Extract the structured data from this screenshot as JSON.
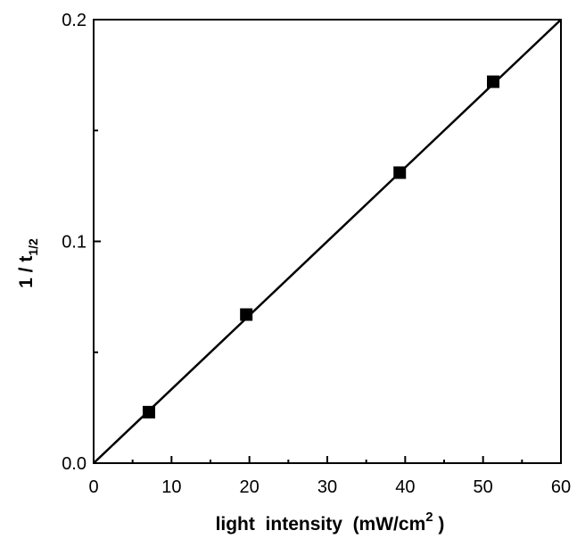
{
  "chart_data": {
    "type": "scatter",
    "xlabel": "light  intensity  (mW/cm",
    "xlabel_sup": "2",
    "xlabel_end": " )",
    "ylabel": "1 / t",
    "ylabel_sub": "1/2",
    "xlim": [
      0,
      60
    ],
    "ylim": [
      0,
      0.2
    ],
    "x_ticks": [
      "0",
      "10",
      "20",
      "30",
      "40",
      "50",
      "60"
    ],
    "y_ticks": [
      "0.0",
      "0.1",
      "0.2"
    ],
    "x_tick_values": [
      0,
      10,
      20,
      30,
      40,
      50,
      60
    ],
    "y_tick_values": [
      0,
      0.1,
      0.2
    ],
    "x_minor_step": 5,
    "y_minor_step": 0.05,
    "grid": false,
    "series": [
      {
        "x": [
          7.1,
          19.6,
          39.3,
          51.3
        ],
        "y": [
          0.023,
          0.067,
          0.131,
          0.172
        ],
        "marker": "square",
        "color": "#000000"
      }
    ],
    "fit_line": {
      "x": [
        0,
        60
      ],
      "y": [
        0,
        0.2
      ],
      "color": "#000000"
    }
  }
}
